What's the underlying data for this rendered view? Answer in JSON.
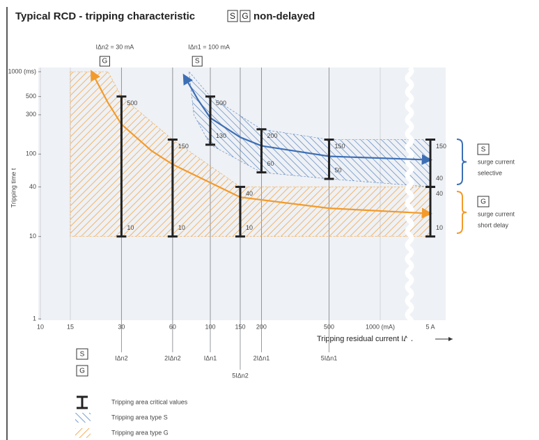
{
  "title": {
    "text": "Typical RCD - tripping characteristic",
    "box_s": "S",
    "box_g": "G",
    "suffix": "non-delayed"
  },
  "chart_data": {
    "type": "line",
    "y_label": "Tripping time t",
    "x_label": "Tripping residual current IΔn",
    "log_x": true,
    "log_y": true,
    "x_break": [
      1000,
      5000
    ],
    "xlim": [
      10,
      5000
    ],
    "ylim": [
      1,
      1000
    ],
    "xticks": [
      10,
      15,
      30,
      60,
      100,
      150,
      200,
      500,
      {
        "value": 1000,
        "label": "1000 (mA)"
      },
      {
        "value": 5000,
        "label": "5 A"
      }
    ],
    "yticks": [
      {
        "value": 1000,
        "label": "1000 (ms)"
      },
      500,
      300,
      100,
      40,
      10,
      1
    ],
    "areas": [
      {
        "name": "Tripping area type G",
        "color": "#f39a2b",
        "x": [
          15,
          25,
          30,
          60,
          150,
          5000,
          5000,
          15
        ],
        "y": [
          1000,
          1000,
          500,
          150,
          40,
          40,
          10,
          10
        ]
      },
      {
        "name": "Tripping area type S",
        "color": "#3d6fb5",
        "x": [
          75,
          100,
          200,
          500,
          5000,
          5000,
          500,
          200,
          100,
          80
        ],
        "y": [
          1000,
          500,
          200,
          150,
          150,
          40,
          50,
          60,
          130,
          300
        ]
      }
    ],
    "series": [
      {
        "name": "IΔn2 = 30 mA",
        "box": "G",
        "color": "#f39a2b",
        "x": [
          20,
          25,
          30,
          45,
          60,
          100,
          150,
          500,
          5000
        ],
        "values": [
          1000,
          420,
          230,
          110,
          75,
          45,
          30,
          22,
          19
        ]
      },
      {
        "name": "IΔn1 = 100 mA",
        "box": "S",
        "color": "#3d6fb5",
        "x": [
          70,
          85,
          100,
          150,
          200,
          500,
          5000
        ],
        "values": [
          900,
          450,
          275,
          160,
          126,
          94,
          85
        ]
      }
    ],
    "critical_values": {
      "name": "Tripping area critical values",
      "x": [
        30,
        60,
        150,
        5000,
        100,
        200,
        500,
        5000
      ],
      "low": [
        10,
        10,
        10,
        10,
        130,
        60,
        50,
        40
      ],
      "high": [
        500,
        150,
        40,
        40,
        500,
        200,
        150,
        150
      ]
    },
    "reference_lines": {
      "x": [
        30,
        60,
        100,
        150,
        200,
        500
      ],
      "labels": [
        "IΔn2",
        "2IΔn2",
        "IΔn1",
        "5IΔn2",
        "2IΔn1",
        "5IΔn1"
      ]
    },
    "row_boxes": [
      "S",
      "G"
    ],
    "annotations": [
      {
        "box": "S",
        "lines": [
          "surge current",
          "selective"
        ],
        "color": "#3d6fb5"
      },
      {
        "box": "G",
        "lines": [
          "surge current",
          "short delay"
        ],
        "color": "#f39a2b"
      }
    ]
  }
}
